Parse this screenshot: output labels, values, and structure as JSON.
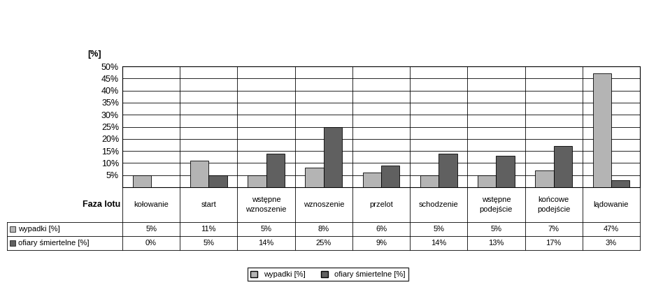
{
  "chart_data": {
    "type": "bar",
    "y_label": "[%]",
    "x_label": "Faza lotu",
    "categories": [
      "kołowanie",
      "start",
      "wstępne wznoszenie",
      "wznoszenie",
      "przelot",
      "schodzenie",
      "wstępne podejście",
      "końcowe podejście",
      "lądowanie"
    ],
    "series": [
      {
        "name": "wypadki [%]",
        "color": "#b4b4b4",
        "values": [
          5,
          11,
          5,
          8,
          6,
          5,
          5,
          7,
          47
        ],
        "value_labels": [
          "5%",
          "11%",
          "5%",
          "8%",
          "6%",
          "5%",
          "5%",
          "7%",
          "47%"
        ]
      },
      {
        "name": "ofiary śmiertelne [%]",
        "color": "#606060",
        "values": [
          0,
          5,
          14,
          25,
          9,
          14,
          13,
          17,
          3
        ],
        "value_labels": [
          "0%",
          "5%",
          "14%",
          "25%",
          "9%",
          "14%",
          "13%",
          "17%",
          "3%"
        ]
      }
    ],
    "ylim": [
      0,
      50
    ],
    "yticks": [
      {
        "value": 5,
        "label": "5%"
      },
      {
        "value": 10,
        "label": "10%"
      },
      {
        "value": 15,
        "label": "15%"
      },
      {
        "value": 20,
        "label": "20%"
      },
      {
        "value": 25,
        "label": "25%"
      },
      {
        "value": 30,
        "label": "30%"
      },
      {
        "value": 35,
        "label": "35%"
      },
      {
        "value": 40,
        "label": "40%"
      },
      {
        "value": 45,
        "label": "45%"
      },
      {
        "value": 50,
        "label": "50%"
      }
    ],
    "grid": true,
    "legend": "lower center",
    "tick_labels": "y"
  }
}
